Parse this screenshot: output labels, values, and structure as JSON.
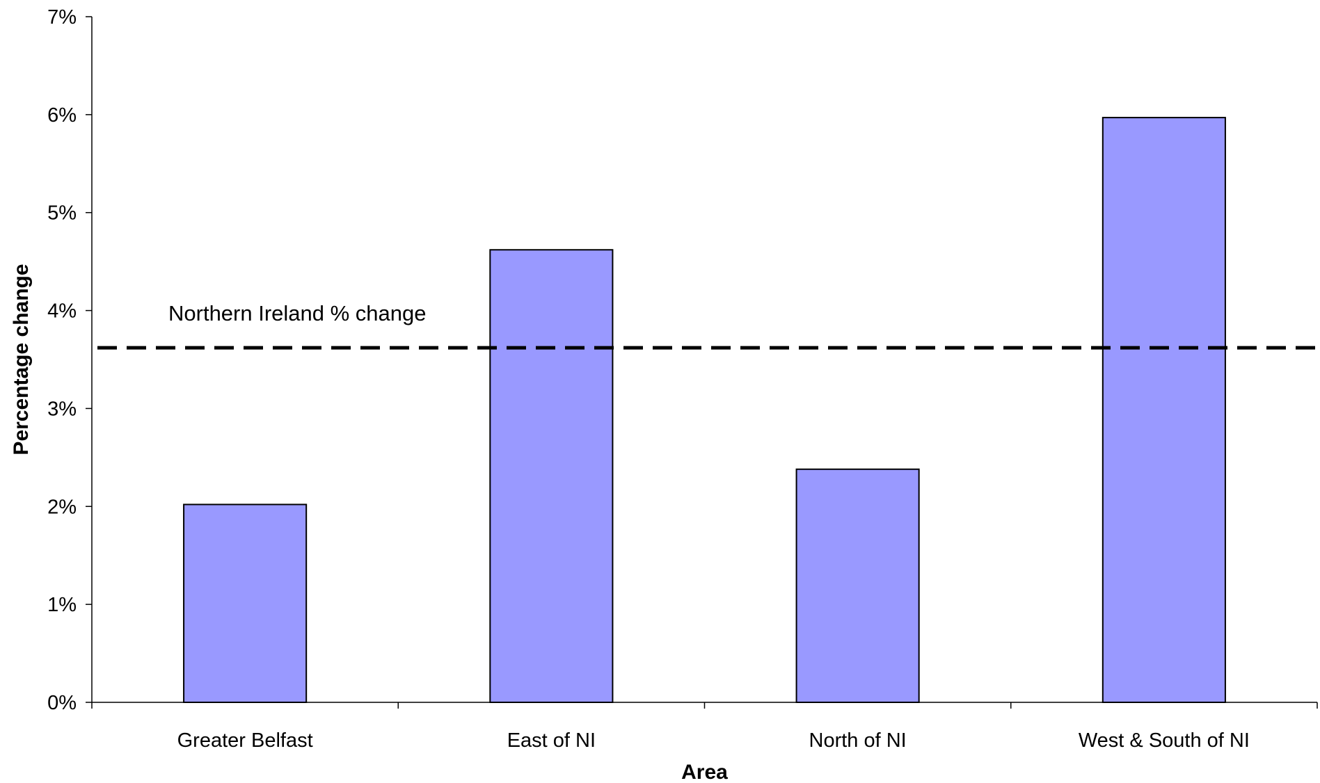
{
  "chart_data": {
    "type": "bar",
    "title": "",
    "xlabel": "Area",
    "ylabel": "Percentage change",
    "categories": [
      "Greater Belfast",
      "East of NI",
      "North of NI",
      "West & South of NI"
    ],
    "values": [
      2.02,
      4.62,
      2.38,
      5.97
    ],
    "ylim": [
      0,
      7
    ],
    "yticks": [
      "0%",
      "1%",
      "2%",
      "3%",
      "4%",
      "5%",
      "6%",
      "7%"
    ],
    "bar_color": "#9999FF",
    "grid": false,
    "reference_line": {
      "value": 3.62,
      "label": "Northern Ireland % change",
      "style": "dashed"
    }
  }
}
